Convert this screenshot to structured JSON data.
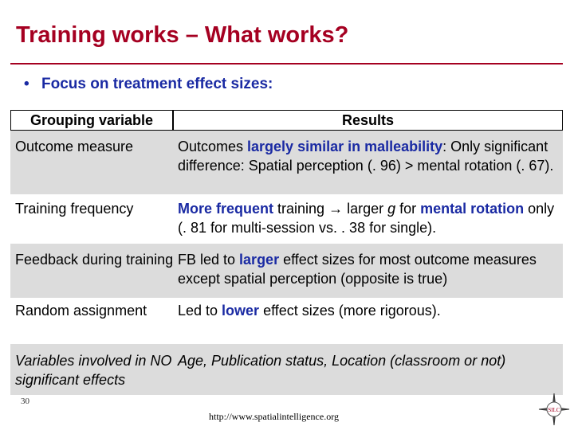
{
  "slide": {
    "title": "Training works – What works?",
    "bullet": "Focus on treatment effect sizes:"
  },
  "table": {
    "headers": [
      "Grouping variable",
      "Results"
    ],
    "rows": [
      {
        "variable": "Outcome measure",
        "r1": "Outcomes ",
        "r2": "largely similar in malleability",
        "r3": ": Only significant difference: Spatial perception (. 96) > mental rotation (. 67)."
      },
      {
        "variable": "Training frequency",
        "r1": "More frequent",
        "r2": " training ",
        "r3": "→",
        "r4": " larger ",
        "r5": "g",
        "r6": " for ",
        "r7": "mental rotation",
        "r8": " only (. 81 for multi-session vs. . 38 for single)."
      },
      {
        "variable": "Feedback during training",
        "r1": "FB led to ",
        "r2": "larger",
        "r3": " effect sizes for most outcome measures except spatial perception (opposite is true)"
      },
      {
        "variable": "Random assignment",
        "r1": "Led to ",
        "r2": "lower",
        "r3": " effect sizes (more rigorous)."
      },
      {
        "variable": "Variables involved in NO significant effects",
        "r1": "Age, Publication status, Location (classroom or not)"
      }
    ]
  },
  "footer": {
    "page_number": "30",
    "url": "http://www.spatialintelligence.org",
    "logo_text": "SILC"
  },
  "colors": {
    "title": "#a50021",
    "highlight": "#1a2aa3",
    "row_shade": "#dcdcdc"
  }
}
